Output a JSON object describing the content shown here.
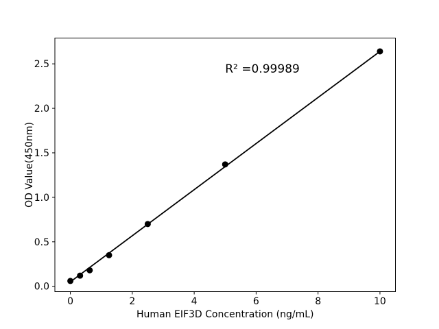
{
  "figure": {
    "background": "#ffffff",
    "foreground": "#000000"
  },
  "chart_data": {
    "type": "scatter",
    "title": "",
    "xlabel": "Human EIF3D Concentration (ng/mL)",
    "ylabel": "OD Value(450nm)",
    "x": [
      0,
      0.313,
      0.625,
      1.25,
      2.5,
      5,
      10
    ],
    "y": [
      0.06,
      0.12,
      0.18,
      0.35,
      0.7,
      1.37,
      2.64
    ],
    "trendline": {
      "x1": 0,
      "y1": 0.05,
      "x2": 10,
      "y2": 2.64
    },
    "annotation": {
      "text": "R² =0.99989",
      "x": 5.0,
      "y": 2.4
    },
    "xlim": [
      -0.5,
      10.5
    ],
    "ylim": [
      -0.06,
      2.79
    ],
    "xticks": [
      0,
      2,
      4,
      6,
      8,
      10
    ],
    "xtick_labels": [
      "0",
      "2",
      "4",
      "6",
      "8",
      "10"
    ],
    "yticks": [
      0,
      0.5,
      1.0,
      1.5,
      2.0,
      2.5
    ],
    "ytick_labels": [
      "0.0",
      "0.5",
      "1.0",
      "1.5",
      "2.0",
      "2.5"
    ],
    "grid": false,
    "legend": null,
    "marker_color": "#000000",
    "line_color": "#000000",
    "marker_size_px": 4.5
  }
}
